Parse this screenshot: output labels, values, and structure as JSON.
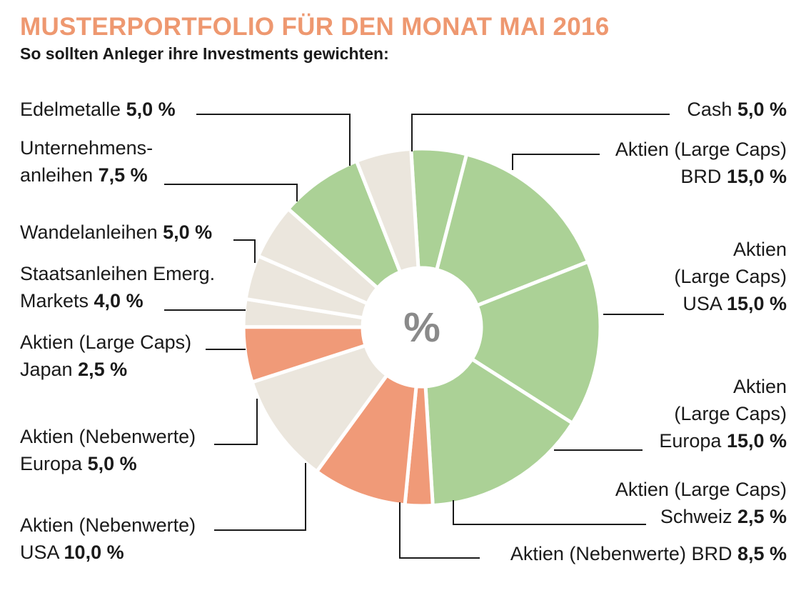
{
  "title": "MUSTERPORTFOLIO FÜR DEN MONAT MAI 2016",
  "subtitle": "So sollten Anleger ihre Investments gewichten:",
  "center_label": "%",
  "colors": {
    "title": "#ee9870",
    "green": "#abd196",
    "beige": "#ebe6dd",
    "salmon": "#f09a78",
    "leader": "#1a1a1a"
  },
  "chart_data": {
    "type": "pie",
    "variant": "donut",
    "title": "MUSTERPORTFOLIO FÜR DEN MONAT MAI 2016",
    "subtitle": "So sollten Anleger ihre Investments gewichten:",
    "unit": "%",
    "slices": [
      {
        "label": "Cash",
        "value": 5.0,
        "value_text": "5,0 %",
        "color": "green"
      },
      {
        "label": "Aktien (Large Caps) BRD",
        "value": 15.0,
        "value_text": "15,0 %",
        "color": "green"
      },
      {
        "label": "Aktien (Large Caps) USA",
        "value": 15.0,
        "value_text": "15,0 %",
        "color": "green"
      },
      {
        "label": "Aktien (Large Caps) Europa",
        "value": 15.0,
        "value_text": "15,0 %",
        "color": "green"
      },
      {
        "label": "Aktien (Large Caps) Schweiz",
        "value": 2.5,
        "value_text": "2,5 %",
        "color": "salmon"
      },
      {
        "label": "Aktien (Nebenwerte) BRD",
        "value": 8.5,
        "value_text": "8,5 %",
        "color": "salmon"
      },
      {
        "label": "Aktien (Nebenwerte) USA",
        "value": 10.0,
        "value_text": "10,0 %",
        "color": "beige"
      },
      {
        "label": "Aktien (Nebenwerte) Europa",
        "value": 5.0,
        "value_text": "5,0 %",
        "color": "salmon"
      },
      {
        "label": "Aktien (Large Caps) Japan",
        "value": 2.5,
        "value_text": "2,5 %",
        "color": "beige"
      },
      {
        "label": "Staatsanleihen Emerg. Markets",
        "value": 4.0,
        "value_text": "4,0 %",
        "color": "beige"
      },
      {
        "label": "Wandelanleihen",
        "value": 5.0,
        "value_text": "5,0 %",
        "color": "beige"
      },
      {
        "label": "Unternehmensanleihen",
        "value": 7.5,
        "value_text": "7,5 %",
        "color": "green"
      },
      {
        "label": "Edelmetalle",
        "value": 5.0,
        "value_text": "5,0 %",
        "color": "beige"
      }
    ]
  },
  "labels": {
    "edelmetalle": {
      "line1": "Edelmetalle ",
      "value": "5,0 %"
    },
    "unternehmensanleihen": {
      "line1": "Unternehmens-",
      "line2": "anleihen ",
      "value": "7,5 %"
    },
    "wandelanleihen": {
      "line1": "Wandelanleihen ",
      "value": "5,0 %"
    },
    "staatsanleihen": {
      "line1": "Staatsanleihen Emerg.",
      "line2": "Markets ",
      "value": "4,0 %"
    },
    "japan": {
      "line1": "Aktien (Large Caps)",
      "line2": "Japan ",
      "value": "2,5 %"
    },
    "neben_europa": {
      "line1": "Aktien (Nebenwerte)",
      "line2": "Europa ",
      "value": "5,0 %"
    },
    "neben_usa": {
      "line1": "Aktien (Nebenwerte)",
      "line2": "USA ",
      "value": "10,0 %"
    },
    "cash": {
      "line1": "Cash ",
      "value": "5,0 %"
    },
    "large_brd": {
      "line1": "Aktien (Large Caps)",
      "line2": "BRD ",
      "value": "15,0 %"
    },
    "large_usa": {
      "line1": "Aktien",
      "line2": "(Large Caps)",
      "line3": "USA ",
      "value": "15,0 %"
    },
    "large_europa": {
      "line1": "Aktien",
      "line2": "(Large Caps)",
      "line3": "Europa ",
      "value": "15,0 %"
    },
    "large_schweiz": {
      "line1": "Aktien (Large Caps)",
      "line2": "Schweiz ",
      "value": "2,5 %"
    },
    "neben_brd": {
      "line1": "Aktien (Nebenwerte) BRD ",
      "value": "8,5 %"
    }
  }
}
